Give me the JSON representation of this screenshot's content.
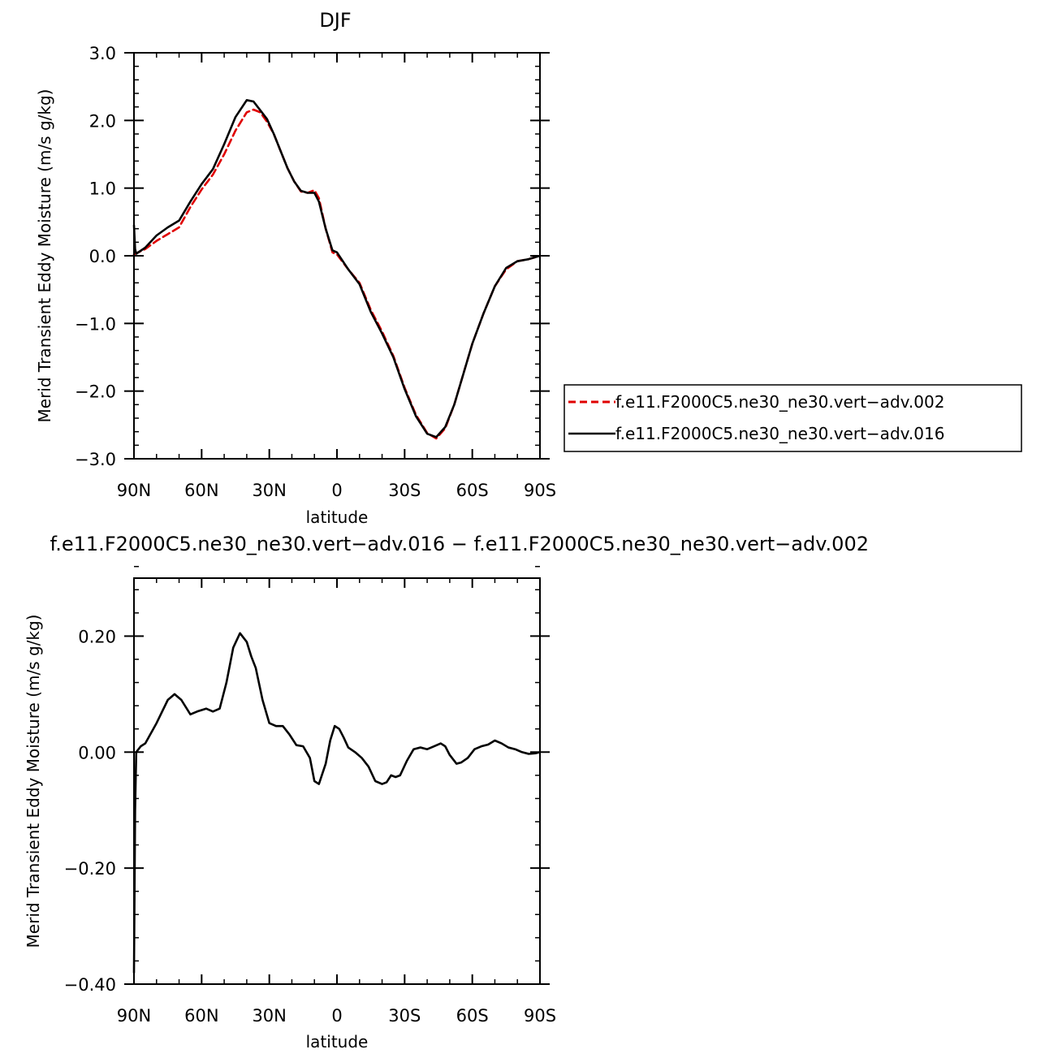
{
  "chart_data": [
    {
      "type": "line",
      "title": "DJF",
      "xlabel": "latitude",
      "ylabel": "Merid Transient Eddy Moisture (m/s g/kg)",
      "x_tick_values": [
        90,
        60,
        30,
        0,
        -30,
        -60,
        -90
      ],
      "x_tick_labels": [
        "90N",
        "60N",
        "30N",
        "0",
        "30S",
        "60S",
        "90S"
      ],
      "y_tick_values": [
        3.0,
        2.0,
        1.0,
        0.0,
        -1.0,
        -2.0,
        -3.0
      ],
      "y_tick_labels": [
        "3.0",
        "2.0",
        "1.0",
        "0.0",
        "−1.0",
        "−2.0",
        "−3.0"
      ],
      "xlim": [
        90,
        -90
      ],
      "ylim": [
        -3.0,
        3.0
      ],
      "grid": false,
      "legend": "right",
      "series": [
        {
          "name": "f.e11.F2000C5.ne30_ne30.vert−adv.002",
          "color": "#e00000",
          "dash": "dashed",
          "x": [
            90,
            85,
            80,
            75,
            70,
            65,
            60,
            55,
            50,
            45,
            40,
            37,
            34,
            31,
            28,
            25,
            22,
            19,
            16,
            13,
            10,
            8,
            5,
            2,
            0,
            -5,
            -10,
            -15,
            -20,
            -25,
            -30,
            -35,
            -40,
            -44,
            -48,
            -52,
            -56,
            -60,
            -65,
            -70,
            -75,
            -80,
            -85,
            -90
          ],
          "y": [
            0.02,
            0.1,
            0.22,
            0.32,
            0.42,
            0.72,
            0.98,
            1.2,
            1.5,
            1.85,
            2.12,
            2.16,
            2.12,
            1.98,
            1.8,
            1.55,
            1.3,
            1.1,
            0.95,
            0.93,
            0.97,
            0.85,
            0.4,
            0.05,
            0.02,
            -0.2,
            -0.4,
            -0.8,
            -1.12,
            -1.48,
            -1.95,
            -2.35,
            -2.62,
            -2.7,
            -2.55,
            -2.2,
            -1.75,
            -1.3,
            -0.85,
            -0.45,
            -0.2,
            -0.08,
            -0.05,
            0.0
          ]
        },
        {
          "name": "f.e11.F2000C5.ne30_ne30.vert−adv.016",
          "color": "#000000",
          "dash": "solid",
          "x": [
            90,
            89.5,
            89,
            85,
            80,
            75,
            70,
            65,
            60,
            55,
            50,
            45,
            40,
            37,
            34,
            31,
            28,
            25,
            22,
            19,
            16,
            13,
            10,
            8,
            5,
            2,
            0,
            -5,
            -10,
            -15,
            -20,
            -25,
            -30,
            -35,
            -40,
            -44,
            -48,
            -52,
            -56,
            -60,
            -65,
            -70,
            -75,
            -80,
            -85,
            -90
          ],
          "y": [
            0.45,
            0.1,
            0.03,
            0.12,
            0.3,
            0.42,
            0.52,
            0.8,
            1.06,
            1.28,
            1.65,
            2.05,
            2.3,
            2.28,
            2.15,
            2.02,
            1.8,
            1.55,
            1.3,
            1.1,
            0.96,
            0.93,
            0.93,
            0.8,
            0.4,
            0.08,
            0.05,
            -0.2,
            -0.42,
            -0.83,
            -1.15,
            -1.5,
            -1.97,
            -2.37,
            -2.63,
            -2.68,
            -2.53,
            -2.2,
            -1.75,
            -1.3,
            -0.85,
            -0.45,
            -0.18,
            -0.08,
            -0.05,
            0.0
          ]
        }
      ]
    },
    {
      "type": "line",
      "title": "f.e11.F2000C5.ne30_ne30.vert−adv.016 − f.e11.F2000C5.ne30_ne30.vert−adv.002",
      "xlabel": "latitude",
      "ylabel": "Merid Transient Eddy Moisture (m/s g/kg)",
      "x_tick_values": [
        90,
        60,
        30,
        0,
        -30,
        -60,
        -90
      ],
      "x_tick_labels": [
        "90N",
        "60N",
        "30N",
        "0",
        "30S",
        "60S",
        "90S"
      ],
      "y_tick_values": [
        0.2,
        0.0,
        -0.2,
        -0.4
      ],
      "y_tick_labels": [
        "0.20",
        "0.00",
        "−0.20",
        "−0.40"
      ],
      "xlim": [
        90,
        -90
      ],
      "ylim": [
        -0.4,
        0.3
      ],
      "grid": false,
      "series": [
        {
          "color": "#000000",
          "dash": "solid",
          "x": [
            90,
            89.5,
            89,
            87,
            85,
            80,
            75,
            72,
            69,
            65,
            62,
            58,
            55,
            52,
            49,
            46,
            43,
            40,
            38,
            36,
            33,
            30,
            27,
            24,
            21,
            18,
            15,
            12,
            10,
            8,
            5,
            3,
            1,
            -1,
            -3,
            -5,
            -8,
            -11,
            -14,
            -17,
            -20,
            -22,
            -24,
            -26,
            -28,
            -31,
            -34,
            -37,
            -40,
            -43,
            -46,
            -48,
            -50,
            -53,
            -55,
            -58,
            -61,
            -64,
            -67,
            -70,
            -73,
            -76,
            -79,
            -82,
            -85,
            -88,
            -90
          ],
          "y": [
            -0.38,
            -0.1,
            0.0,
            0.01,
            0.015,
            0.05,
            0.09,
            0.1,
            0.09,
            0.065,
            0.07,
            0.075,
            0.07,
            0.075,
            0.12,
            0.18,
            0.205,
            0.19,
            0.165,
            0.145,
            0.09,
            0.05,
            0.045,
            0.045,
            0.03,
            0.012,
            0.01,
            -0.01,
            -0.05,
            -0.055,
            -0.02,
            0.02,
            0.045,
            0.04,
            0.025,
            0.008,
            0.0,
            -0.01,
            -0.025,
            -0.05,
            -0.055,
            -0.052,
            -0.04,
            -0.043,
            -0.04,
            -0.015,
            0.005,
            0.008,
            0.005,
            0.01,
            0.015,
            0.01,
            -0.005,
            -0.02,
            -0.018,
            -0.01,
            0.005,
            0.01,
            0.013,
            0.02,
            0.015,
            0.008,
            0.005,
            0.0,
            -0.003,
            -0.002,
            0.0
          ]
        }
      ]
    }
  ]
}
